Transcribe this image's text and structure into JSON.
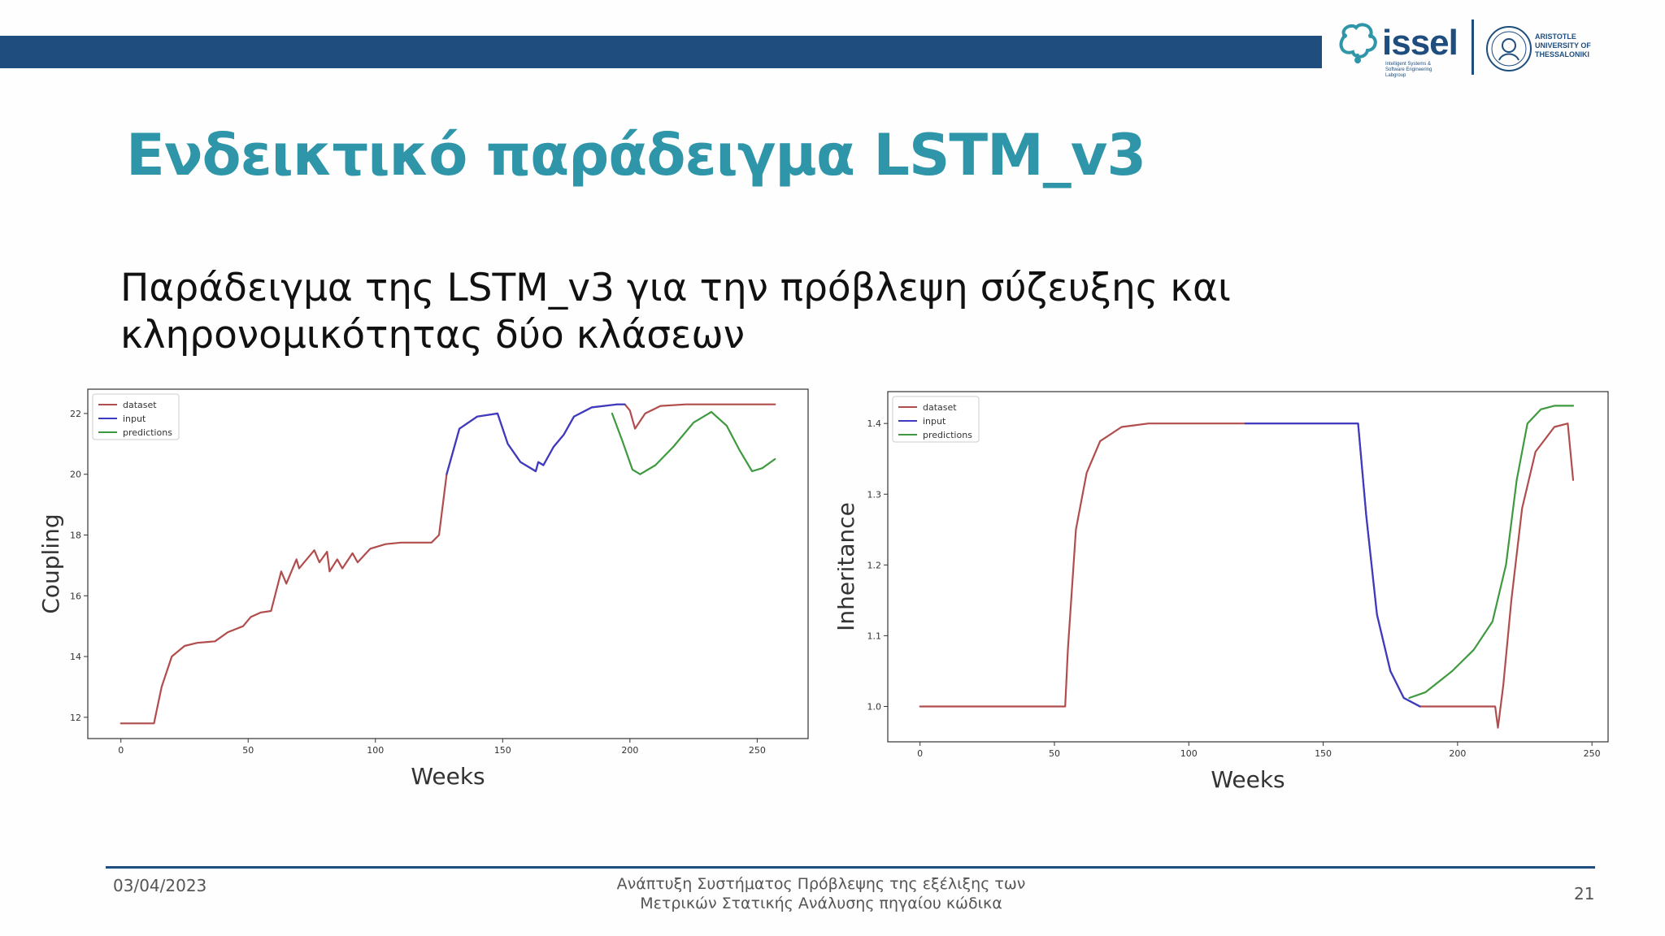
{
  "header": {
    "logo_name": "issel",
    "logo_subtitle": "Intelligent Systems & Software Engineering Labgroup",
    "university": "ARISTOTLE UNIVERSITY OF THESSALONIKI"
  },
  "slide": {
    "title": "Ενδεικτικό παράδειγμα LSTM_v3",
    "subtitle": "Παράδειγμα της LSTM_v3 για την πρόβλεψη σύζευξης και κληρονομικότητας δύο κλάσεων"
  },
  "footer": {
    "date": "03/04/2023",
    "center_line1": "Ανάπτυξη Συστήματος Πρόβλεψης της εξέλιξης των",
    "center_line2": "Μετρικών Στατικής Ανάλυσης πηγαίου κώδικα",
    "page": "21"
  },
  "colors": {
    "dataset": "#b14d4d",
    "input": "#3b3bc4",
    "predictions": "#3f9a3f",
    "accent": "#2e96a8",
    "brand": "#1f4e7e"
  },
  "chart_data": [
    {
      "type": "line",
      "xlabel": "Weeks",
      "ylabel": "Coupling",
      "xlim": [
        -13,
        270
      ],
      "ylim": [
        11.3,
        22.8
      ],
      "xticks": [
        0,
        50,
        100,
        150,
        200,
        250
      ],
      "yticks": [
        12,
        14,
        16,
        18,
        20,
        22
      ],
      "legend": {
        "position": "top-left",
        "entries": [
          "dataset",
          "input",
          "predictions"
        ]
      },
      "series": [
        {
          "name": "dataset",
          "color": "#b14d4d",
          "points": [
            [
              0,
              11.8
            ],
            [
              13,
              11.8
            ],
            [
              16,
              13.0
            ],
            [
              20,
              14.0
            ],
            [
              25,
              14.35
            ],
            [
              30,
              14.45
            ],
            [
              37,
              14.5
            ],
            [
              42,
              14.8
            ],
            [
              48,
              15.0
            ],
            [
              51,
              15.3
            ],
            [
              55,
              15.45
            ],
            [
              59,
              15.5
            ],
            [
              63,
              16.8
            ],
            [
              65,
              16.4
            ],
            [
              69,
              17.2
            ],
            [
              70,
              16.9
            ],
            [
              76,
              17.5
            ],
            [
              78,
              17.1
            ],
            [
              81,
              17.45
            ],
            [
              82,
              16.8
            ],
            [
              85,
              17.2
            ],
            [
              87,
              16.9
            ],
            [
              91,
              17.4
            ],
            [
              93,
              17.1
            ],
            [
              98,
              17.55
            ],
            [
              104,
              17.7
            ],
            [
              110,
              17.75
            ],
            [
              122,
              17.75
            ],
            [
              125,
              18.0
            ],
            [
              128,
              20.0
            ],
            [
              133,
              21.5
            ],
            [
              140,
              21.9
            ],
            [
              148,
              22.0
            ],
            [
              152,
              21.0
            ],
            [
              157,
              20.4
            ],
            [
              163,
              20.1
            ],
            [
              164,
              20.4
            ],
            [
              166,
              20.3
            ],
            [
              170,
              20.9
            ],
            [
              174,
              21.3
            ],
            [
              178,
              21.9
            ],
            [
              185,
              22.2
            ],
            [
              195,
              22.3
            ],
            [
              198,
              22.3
            ],
            [
              200,
              22.1
            ],
            [
              202,
              21.5
            ],
            [
              206,
              22.0
            ],
            [
              212,
              22.25
            ],
            [
              222,
              22.3
            ],
            [
              240,
              22.3
            ],
            [
              257,
              22.3
            ]
          ]
        },
        {
          "name": "input",
          "color": "#3b3bc4",
          "points": [
            [
              128,
              20.0
            ],
            [
              133,
              21.5
            ],
            [
              140,
              21.9
            ],
            [
              148,
              22.0
            ],
            [
              152,
              21.0
            ],
            [
              157,
              20.4
            ],
            [
              163,
              20.1
            ],
            [
              164,
              20.4
            ],
            [
              166,
              20.3
            ],
            [
              170,
              20.9
            ],
            [
              174,
              21.3
            ],
            [
              178,
              21.9
            ],
            [
              185,
              22.2
            ],
            [
              195,
              22.3
            ],
            [
              198,
              22.3
            ]
          ]
        },
        {
          "name": "predictions",
          "color": "#3f9a3f",
          "points": [
            [
              193,
              22.0
            ],
            [
              197,
              21.1
            ],
            [
              201,
              20.15
            ],
            [
              204,
              20.0
            ],
            [
              210,
              20.3
            ],
            [
              217,
              20.9
            ],
            [
              225,
              21.7
            ],
            [
              232,
              22.05
            ],
            [
              238,
              21.6
            ],
            [
              243,
              20.8
            ],
            [
              248,
              20.1
            ],
            [
              252,
              20.2
            ],
            [
              257,
              20.5
            ]
          ]
        }
      ]
    },
    {
      "type": "line",
      "xlabel": "Weeks",
      "ylabel": "Inheritance",
      "xlim": [
        -12,
        256
      ],
      "ylim": [
        0.95,
        1.445
      ],
      "xticks": [
        0,
        50,
        100,
        150,
        200,
        250
      ],
      "yticks": [
        1.0,
        1.1,
        1.2,
        1.3,
        1.4
      ],
      "legend": {
        "position": "top-left",
        "entries": [
          "dataset",
          "input",
          "predictions"
        ]
      },
      "series": [
        {
          "name": "dataset",
          "color": "#b14d4d",
          "points": [
            [
              0,
              1.0
            ],
            [
              54,
              1.0
            ],
            [
              55,
              1.08
            ],
            [
              58,
              1.25
            ],
            [
              62,
              1.33
            ],
            [
              67,
              1.375
            ],
            [
              75,
              1.395
            ],
            [
              85,
              1.4
            ],
            [
              120,
              1.4
            ],
            [
              163,
              1.4
            ],
            [
              166,
              1.27
            ],
            [
              170,
              1.13
            ],
            [
              175,
              1.05
            ],
            [
              180,
              1.012
            ],
            [
              186,
              1.0
            ],
            [
              200,
              1.0
            ],
            [
              214,
              1.0
            ],
            [
              215,
              0.97
            ],
            [
              217,
              1.03
            ],
            [
              220,
              1.15
            ],
            [
              224,
              1.28
            ],
            [
              229,
              1.36
            ],
            [
              236,
              1.395
            ],
            [
              241,
              1.4
            ],
            [
              243,
              1.32
            ]
          ]
        },
        {
          "name": "input",
          "color": "#3b3bc4",
          "points": [
            [
              121,
              1.4
            ],
            [
              163,
              1.4
            ],
            [
              166,
              1.27
            ],
            [
              170,
              1.13
            ],
            [
              175,
              1.05
            ],
            [
              180,
              1.012
            ],
            [
              186,
              1.0
            ]
          ]
        },
        {
          "name": "predictions",
          "color": "#3f9a3f",
          "points": [
            [
              182,
              1.012
            ],
            [
              188,
              1.02
            ],
            [
              198,
              1.05
            ],
            [
              206,
              1.08
            ],
            [
              213,
              1.12
            ],
            [
              218,
              1.2
            ],
            [
              222,
              1.32
            ],
            [
              226,
              1.4
            ],
            [
              231,
              1.42
            ],
            [
              236,
              1.425
            ],
            [
              243,
              1.425
            ]
          ]
        }
      ]
    }
  ]
}
